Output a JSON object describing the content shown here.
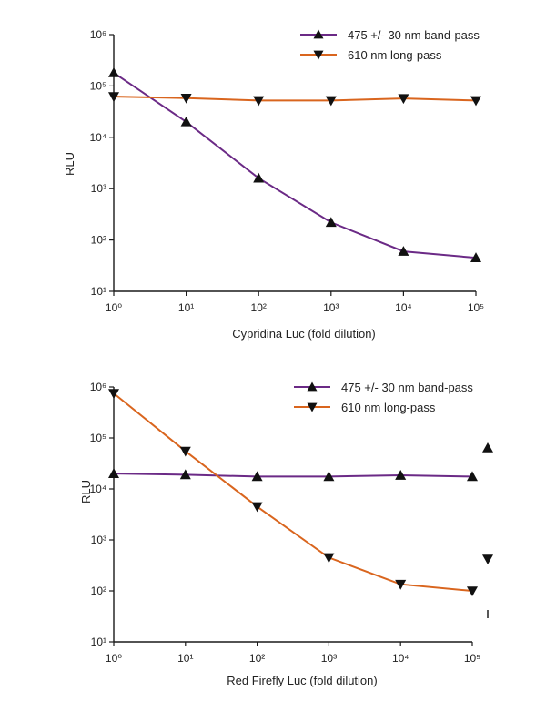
{
  "colors": {
    "purple": "#6b2a86",
    "orange": "#d9651e",
    "axis": "#1a1a1a"
  },
  "chart_data": [
    {
      "type": "line",
      "xscale": "log",
      "yscale": "log",
      "xlabel": "Cypridina Luc (fold dilution)",
      "ylabel": "RLU",
      "xlim": [
        1,
        100000
      ],
      "ylim": [
        10,
        1000000
      ],
      "x_ticks": [
        "10⁰",
        "10¹",
        "10²",
        "10³",
        "10⁴",
        "10⁵"
      ],
      "y_ticks": [
        "10¹",
        "10²",
        "10³",
        "10⁴",
        "10⁵",
        "10⁶"
      ],
      "legend_position": "top-right",
      "grid": false,
      "x": [
        1,
        10,
        100,
        1000,
        10000,
        100000
      ],
      "series": [
        {
          "name": "475 +/- 30 nm band-pass",
          "color": "#6b2a86",
          "marker": "triangle-up",
          "values": [
            180000,
            20000,
            1600,
            220,
            60,
            45
          ]
        },
        {
          "name": "610 nm long-pass",
          "color": "#d9651e",
          "marker": "triangle-down",
          "values": [
            62000,
            58000,
            52000,
            52000,
            57000,
            52000
          ]
        }
      ]
    },
    {
      "type": "line",
      "xscale": "log",
      "yscale": "log",
      "xlabel": "Red Firefly Luc (fold dilution)",
      "ylabel": "RLU",
      "xlim": [
        1,
        100000
      ],
      "ylim": [
        10,
        1000000
      ],
      "x_ticks": [
        "10⁰",
        "10¹",
        "10²",
        "10³",
        "10⁴",
        "10⁵"
      ],
      "y_ticks": [
        "10¹",
        "10²",
        "10³",
        "10⁴",
        "10⁵",
        "10⁶"
      ],
      "legend_position": "top-right",
      "grid": false,
      "x": [
        1,
        10,
        100,
        1000,
        10000,
        100000
      ],
      "series": [
        {
          "name": "475 +/- 30 nm band-pass",
          "color": "#6b2a86",
          "marker": "triangle-up",
          "values": [
            20000,
            19000,
            17500,
            17500,
            18500,
            17500
          ]
        },
        {
          "name": "610 nm long-pass",
          "color": "#d9651e",
          "marker": "triangle-down",
          "values": [
            750000,
            55000,
            4500,
            450,
            135,
            100
          ]
        }
      ]
    }
  ]
}
